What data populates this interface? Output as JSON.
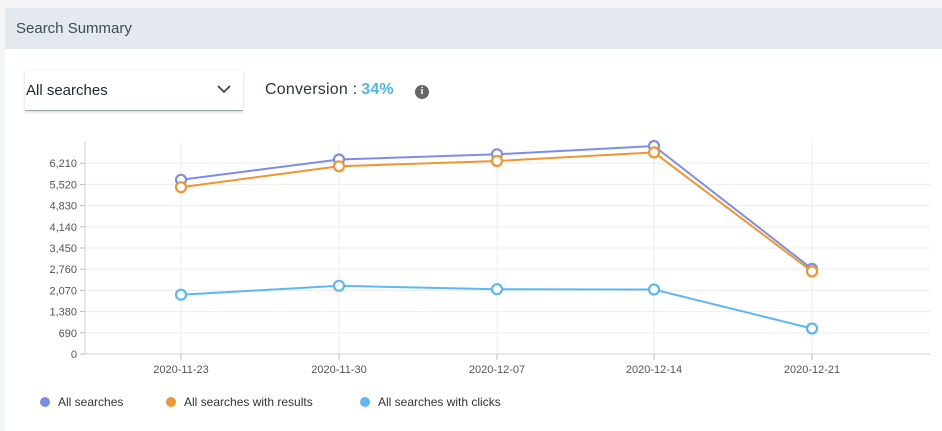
{
  "panel": {
    "title": "Search Summary"
  },
  "filter": {
    "selected": "All searches"
  },
  "conversion": {
    "label": "Conversion :",
    "value": "34%"
  },
  "chart_data": {
    "type": "line",
    "categories": [
      "2020-11-23",
      "2020-11-30",
      "2020-12-07",
      "2020-12-14",
      "2020-12-21"
    ],
    "y_ticks": [
      "0",
      "690",
      "1,380",
      "2,070",
      "2,760",
      "3,450",
      "4,140",
      "4,830",
      "5,520",
      "6,210"
    ],
    "ylim": [
      0,
      6900
    ],
    "grid": true,
    "legend_position": "bottom-left",
    "series": [
      {
        "name": "All searches",
        "color": "#7b8de8",
        "values": [
          5670,
          6330,
          6500,
          6770,
          2770
        ]
      },
      {
        "name": "All searches with results",
        "color": "#f0952f",
        "values": [
          5430,
          6110,
          6280,
          6560,
          2690
        ]
      },
      {
        "name": "All searches with clicks",
        "color": "#5bb8f5",
        "values": [
          1930,
          2220,
          2110,
          2100,
          830
        ]
      }
    ]
  }
}
